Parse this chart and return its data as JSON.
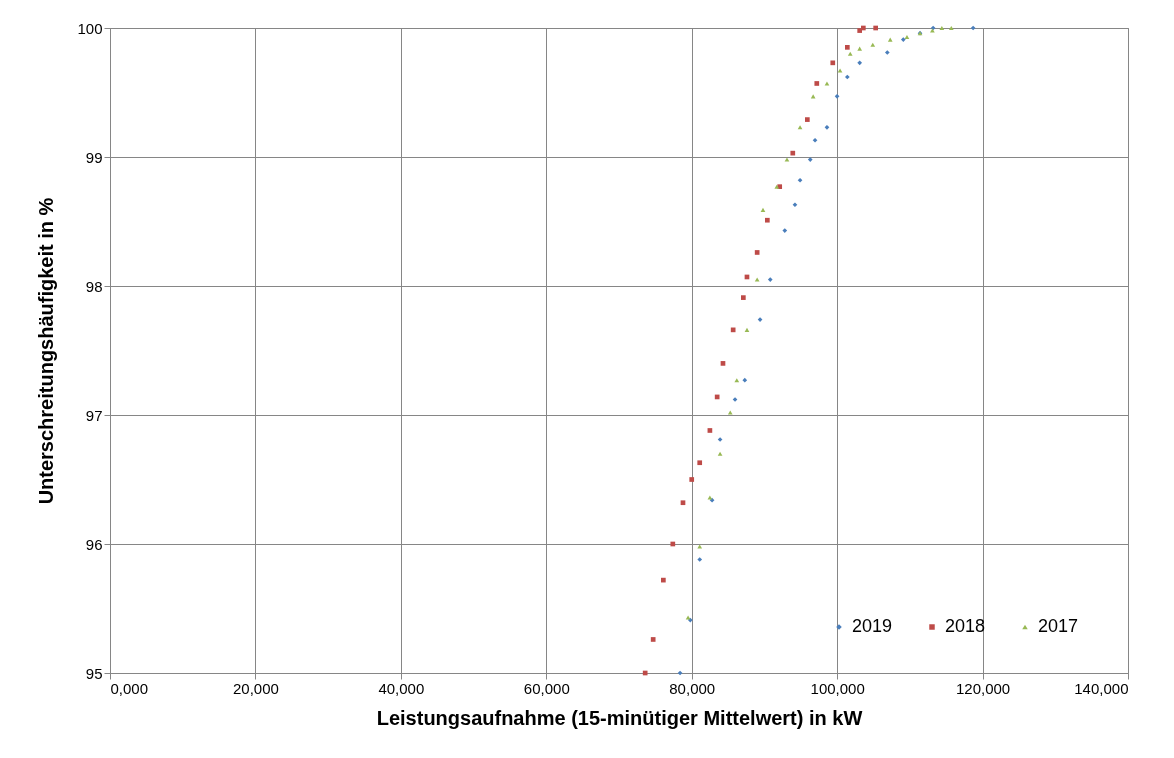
{
  "chart_data": {
    "type": "scatter",
    "xlabel": "Leistungsaufnahme (15-minütiger Mittelwert) in kW",
    "ylabel": "Unterschreitungshäufigkeit in %",
    "xlim": [
      0,
      140000
    ],
    "ylim": [
      95,
      100
    ],
    "xticks": [
      {
        "value": 0,
        "label": "0,000"
      },
      {
        "value": 20000,
        "label": "20,000"
      },
      {
        "value": 40000,
        "label": "40,000"
      },
      {
        "value": 60000,
        "label": "60,000"
      },
      {
        "value": 80000,
        "label": "80,000"
      },
      {
        "value": 100000,
        "label": "100,000"
      },
      {
        "value": 120000,
        "label": "120,000"
      },
      {
        "value": 140000,
        "label": "140,000"
      }
    ],
    "yticks": [
      95,
      96,
      97,
      98,
      99,
      100
    ],
    "grid": true,
    "legend": "bottom right",
    "series": [
      {
        "name": "2019",
        "color": "#4a7ebb",
        "marker": "diamond",
        "x": [
          78400,
          79800,
          81100,
          82800,
          83900,
          85960,
          87300,
          89400,
          90800,
          92800,
          94200,
          94900,
          96300,
          96960,
          98600,
          99990,
          101400,
          103100,
          106900,
          109100,
          111400,
          113200,
          118700
        ],
        "values": [
          95.0,
          95.41,
          95.88,
          96.34,
          96.81,
          97.12,
          97.27,
          97.74,
          98.05,
          98.43,
          98.63,
          98.82,
          98.98,
          99.13,
          99.23,
          99.47,
          99.62,
          99.73,
          99.81,
          99.91,
          99.96,
          100,
          100
        ]
      },
      {
        "name": "2018",
        "color": "#be4b48",
        "marker": "square",
        "x": [
          73600,
          74700,
          76100,
          77400,
          78800,
          80000,
          81100,
          82500,
          83500,
          84300,
          85700,
          87100,
          87600,
          89000,
          90400,
          92100,
          93900,
          95900,
          97200,
          99400,
          101400,
          103100,
          103600,
          105300
        ],
        "values": [
          95.0,
          95.26,
          95.72,
          96.0,
          96.32,
          96.5,
          96.63,
          96.88,
          97.14,
          97.4,
          97.66,
          97.91,
          98.07,
          98.26,
          98.51,
          98.77,
          99.03,
          99.29,
          99.57,
          99.73,
          99.85,
          99.98,
          100,
          100
        ]
      },
      {
        "name": "2017",
        "color": "#98b954",
        "marker": "triangle",
        "x": [
          79500,
          81100,
          82500,
          83900,
          85300,
          86200,
          87600,
          89000,
          89800,
          91700,
          93100,
          94900,
          96700,
          98600,
          100400,
          101800,
          103100,
          104900,
          107300,
          109600,
          111400,
          113100,
          114400,
          115700
        ],
        "values": [
          95.43,
          95.98,
          96.36,
          96.7,
          97.02,
          97.27,
          97.66,
          98.05,
          98.59,
          98.77,
          98.98,
          99.23,
          99.47,
          99.57,
          99.67,
          99.8,
          99.84,
          99.87,
          99.91,
          99.93,
          99.96,
          99.98,
          100,
          100
        ]
      }
    ]
  }
}
